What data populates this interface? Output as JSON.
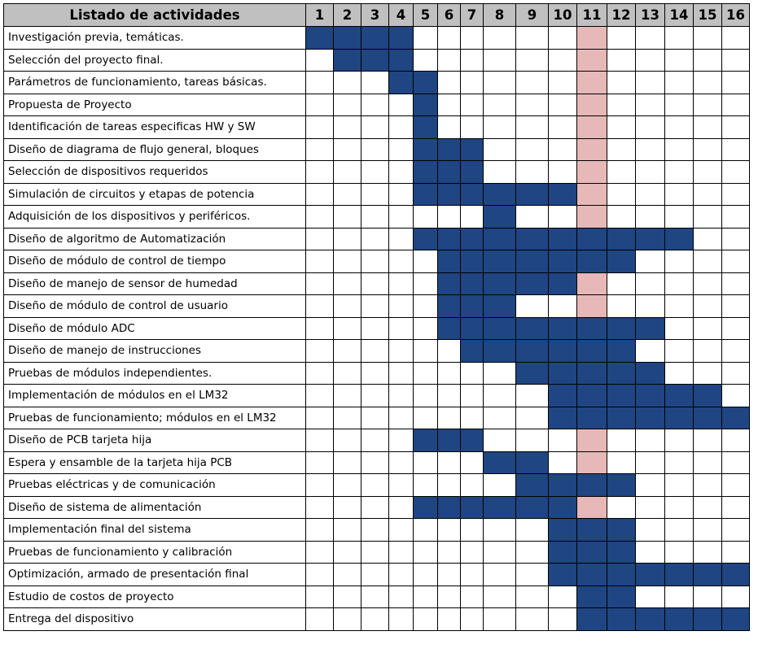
{
  "header_label": "Listado de actividades",
  "weeks": [
    "1",
    "2",
    "3",
    "4",
    "5",
    "6",
    "7",
    "8",
    "9",
    "10",
    "11",
    "12",
    "13",
    "14",
    "15",
    "16"
  ],
  "highlight_week": 11,
  "colors": {
    "filled": "#1f4582",
    "highlight": "#e6b8b8",
    "header_bg": "#c0c0c0",
    "empty": "#ffffff"
  },
  "activities": [
    {
      "name": "Investigación previa, temáticas.",
      "weeks": [
        1,
        2,
        3,
        4
      ]
    },
    {
      "name": "Selección del proyecto final.",
      "weeks": [
        2,
        3,
        4
      ]
    },
    {
      "name": "Parámetros de funcionamiento, tareas básicas.",
      "weeks": [
        4,
        5
      ]
    },
    {
      "name": "Propuesta de Proyecto",
      "weeks": [
        5
      ]
    },
    {
      "name": "Identificación de tareas especificas HW y SW",
      "weeks": [
        5
      ]
    },
    {
      "name": "Diseño de diagrama de flujo general, bloques",
      "weeks": [
        5,
        6,
        7
      ]
    },
    {
      "name": "Selección de dispositivos requeridos",
      "weeks": [
        5,
        6,
        7
      ]
    },
    {
      "name": "Simulación de circuitos y etapas de potencia",
      "weeks": [
        5,
        6,
        7,
        8,
        9,
        10
      ]
    },
    {
      "name": "Adquisición de los dispositivos y periféricos.",
      "weeks": [
        8
      ]
    },
    {
      "name": "Diseño de algoritmo de Automatización",
      "weeks": [
        5,
        6,
        7,
        8,
        9,
        10,
        11,
        12,
        13,
        14
      ]
    },
    {
      "name": "Diseño de módulo de control de tiempo",
      "weeks": [
        6,
        7,
        8,
        9,
        10,
        11,
        12
      ]
    },
    {
      "name": "Diseño de manejo de sensor de humedad",
      "weeks": [
        6,
        7,
        8,
        9,
        10
      ]
    },
    {
      "name": "Diseño de módulo de control de usuario",
      "weeks": [
        6,
        7,
        8
      ]
    },
    {
      "name": "Diseño de módulo  ADC",
      "weeks": [
        6,
        7,
        8,
        9,
        10,
        11,
        12,
        13
      ]
    },
    {
      "name": "Diseño de manejo de instrucciones",
      "weeks": [
        7,
        8,
        9,
        10,
        11,
        12
      ]
    },
    {
      "name": "Pruebas de módulos independientes.",
      "weeks": [
        9,
        10,
        11,
        12,
        13
      ]
    },
    {
      "name": "Implementación de módulos en el LM32",
      "weeks": [
        10,
        11,
        12,
        13,
        14,
        15
      ]
    },
    {
      "name": "Pruebas de funcionamiento; módulos en el LM32",
      "weeks": [
        10,
        11,
        12,
        13,
        14,
        15,
        16
      ]
    },
    {
      "name": "Diseño de PCB tarjeta  hija",
      "weeks": [
        5,
        6,
        7
      ]
    },
    {
      "name": "Espera y ensamble de la tarjeta hija PCB",
      "weeks": [
        8,
        9
      ]
    },
    {
      "name": "Pruebas eléctricas y de comunicación",
      "weeks": [
        9,
        10,
        11,
        12
      ]
    },
    {
      "name": "Diseño de sistema de alimentación",
      "weeks": [
        5,
        6,
        7,
        8,
        9,
        10
      ]
    },
    {
      "name": "Implementación final del sistema",
      "weeks": [
        10,
        11,
        12
      ]
    },
    {
      "name": "Pruebas de funcionamiento y calibración",
      "weeks": [
        10,
        11,
        12
      ]
    },
    {
      "name": "Optimización, armado de presentación final",
      "weeks": [
        10,
        11,
        12,
        13,
        14,
        15,
        16
      ]
    },
    {
      "name": "Estudio de costos de proyecto",
      "weeks": [
        11,
        12
      ]
    },
    {
      "name": "Entrega del dispositivo",
      "weeks": [
        11,
        12,
        13,
        14,
        15,
        16
      ]
    }
  ]
}
